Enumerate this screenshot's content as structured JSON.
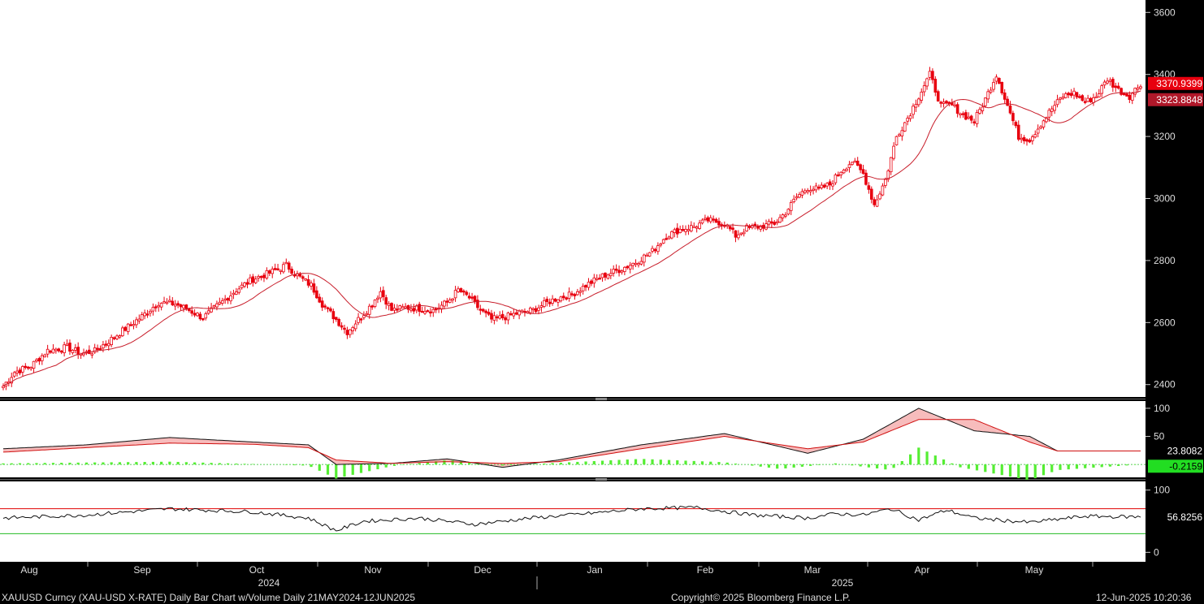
{
  "footer": {
    "left": "XAUUSD Curncy (XAU-USD X-RATE) Daily Bar Chart w/Volume  Daily 21MAY2024-12JUN2025",
    "center": "Copyright© 2025 Bloomberg Finance L.P.",
    "right": "12-Jun-2025 10:20:36"
  },
  "colors": {
    "background": "#ffffff",
    "candle": "#e8000f",
    "ma_line": "#c81e2b",
    "last_price_tag": "#e8000f",
    "ma_tag": "#b0182a",
    "hist_positive": "#55ee33",
    "hist_tag": "#22dd22",
    "stoch_fill": "#f4a0a0",
    "upper_band": "#e00000",
    "lower_band": "#22bb22",
    "axis_bg": "#000000"
  },
  "chart_data": [
    {
      "type": "candlestick",
      "x_months": [
        "Aug",
        "Sep",
        "Oct",
        "Nov",
        "Dec",
        "Jan",
        "Feb",
        "Mar",
        "Apr",
        "May"
      ],
      "years": [
        "2024",
        "2025"
      ],
      "y_ticks": [
        2400,
        2600,
        2800,
        3000,
        3200,
        3400,
        3600
      ],
      "ylim": [
        2360,
        3640
      ],
      "close_anchors": [
        [
          0,
          2395
        ],
        [
          4,
          2440
        ],
        [
          10,
          2460
        ],
        [
          16,
          2510
        ],
        [
          23,
          2520
        ],
        [
          28,
          2500
        ],
        [
          33,
          2508
        ],
        [
          38,
          2540
        ],
        [
          44,
          2580
        ],
        [
          50,
          2620
        ],
        [
          56,
          2665
        ],
        [
          62,
          2660
        ],
        [
          67,
          2640
        ],
        [
          72,
          2615
        ],
        [
          78,
          2660
        ],
        [
          84,
          2705
        ],
        [
          90,
          2740
        ],
        [
          96,
          2760
        ],
        [
          102,
          2785
        ],
        [
          107,
          2745
        ],
        [
          111,
          2720
        ],
        [
          115,
          2660
        ],
        [
          120,
          2610
        ],
        [
          124,
          2570
        ],
        [
          128,
          2610
        ],
        [
          132,
          2650
        ],
        [
          136,
          2700
        ],
        [
          140,
          2640
        ],
        [
          145,
          2648
        ],
        [
          150,
          2645
        ],
        [
          155,
          2640
        ],
        [
          160,
          2665
        ],
        [
          164,
          2705
        ],
        [
          168,
          2680
        ],
        [
          172,
          2640
        ],
        [
          176,
          2610
        ],
        [
          181,
          2618
        ],
        [
          186,
          2632
        ],
        [
          191,
          2640
        ],
        [
          195,
          2660
        ],
        [
          200,
          2680
        ],
        [
          205,
          2690
        ],
        [
          210,
          2720
        ],
        [
          216,
          2750
        ],
        [
          222,
          2770
        ],
        [
          228,
          2795
        ],
        [
          234,
          2830
        ],
        [
          239,
          2880
        ],
        [
          244,
          2900
        ],
        [
          249,
          2910
        ],
        [
          254,
          2930
        ],
        [
          260,
          2920
        ],
        [
          264,
          2880
        ],
        [
          268,
          2905
        ],
        [
          273,
          2910
        ],
        [
          278,
          2920
        ],
        [
          282,
          2955
        ],
        [
          286,
          3005
        ],
        [
          290,
          3035
        ],
        [
          294,
          3030
        ],
        [
          298,
          3045
        ],
        [
          302,
          3090
        ],
        [
          306,
          3120
        ],
        [
          310,
          3080
        ],
        [
          314,
          2980
        ],
        [
          318,
          3060
        ],
        [
          322,
          3200
        ],
        [
          326,
          3260
        ],
        [
          330,
          3330
        ],
        [
          334,
          3400
        ],
        [
          338,
          3300
        ],
        [
          342,
          3300
        ],
        [
          346,
          3270
        ],
        [
          350,
          3250
        ],
        [
          354,
          3320
        ],
        [
          358,
          3400
        ],
        [
          362,
          3300
        ],
        [
          366,
          3200
        ],
        [
          370,
          3190
        ],
        [
          374,
          3240
        ],
        [
          378,
          3290
        ],
        [
          382,
          3330
        ],
        [
          386,
          3340
        ],
        [
          390,
          3310
        ],
        [
          394,
          3330
        ],
        [
          398,
          3385
        ],
        [
          402,
          3350
        ],
        [
          406,
          3330
        ],
        [
          410,
          3371
        ]
      ],
      "last_price": "3370.9399",
      "moving_average": {
        "period": 20,
        "last": "3323.8848"
      }
    },
    {
      "type": "line",
      "y_ticks": [
        50,
        100
      ],
      "ylim": [
        -20,
        110
      ],
      "series": [
        {
          "values_anchors": [
            [
              0,
              28
            ],
            [
              30,
              35
            ],
            [
              60,
              48
            ],
            [
              90,
              40
            ],
            [
              110,
              35
            ],
            [
              120,
              0
            ],
            [
              140,
              2
            ],
            [
              160,
              10
            ],
            [
              180,
              -5
            ],
            [
              200,
              8
            ],
            [
              230,
              35
            ],
            [
              260,
              55
            ],
            [
              290,
              20
            ],
            [
              310,
              45
            ],
            [
              330,
              100
            ],
            [
              350,
              60
            ],
            [
              370,
              50
            ],
            [
              380,
              24
            ],
            [
              410,
              24
            ]
          ]
        },
        {
          "values_anchors": [
            [
              0,
              22
            ],
            [
              30,
              30
            ],
            [
              60,
              38
            ],
            [
              90,
              36
            ],
            [
              110,
              30
            ],
            [
              120,
              8
            ],
            [
              140,
              2
            ],
            [
              160,
              5
            ],
            [
              180,
              2
            ],
            [
              200,
              5
            ],
            [
              230,
              28
            ],
            [
              260,
              50
            ],
            [
              290,
              28
            ],
            [
              310,
              40
            ],
            [
              330,
              80
            ],
            [
              350,
              80
            ],
            [
              370,
              40
            ],
            [
              380,
              24
            ],
            [
              410,
              24
            ]
          ]
        }
      ],
      "histogram_anchors": [
        [
          0,
          2
        ],
        [
          60,
          5
        ],
        [
          110,
          -2
        ],
        [
          120,
          -25
        ],
        [
          140,
          -3
        ],
        [
          160,
          8
        ],
        [
          180,
          -2
        ],
        [
          200,
          3
        ],
        [
          230,
          10
        ],
        [
          260,
          4
        ],
        [
          280,
          -8
        ],
        [
          300,
          2
        ],
        [
          320,
          -10
        ],
        [
          330,
          30
        ],
        [
          345,
          -5
        ],
        [
          370,
          -28
        ],
        [
          380,
          -10
        ],
        [
          410,
          0
        ]
      ],
      "last_values": [
        "23.8082",
        "-0.2159"
      ]
    },
    {
      "type": "line",
      "y_ticks": [
        0,
        100
      ],
      "ylim": [
        -10,
        110
      ],
      "bands": [
        70,
        30
      ],
      "values_anchors": [
        [
          0,
          55
        ],
        [
          30,
          60
        ],
        [
          60,
          70
        ],
        [
          90,
          65
        ],
        [
          110,
          55
        ],
        [
          120,
          35
        ],
        [
          130,
          50
        ],
        [
          150,
          55
        ],
        [
          170,
          45
        ],
        [
          190,
          55
        ],
        [
          210,
          62
        ],
        [
          230,
          70
        ],
        [
          250,
          72
        ],
        [
          270,
          60
        ],
        [
          290,
          55
        ],
        [
          300,
          62
        ],
        [
          310,
          60
        ],
        [
          320,
          70
        ],
        [
          330,
          52
        ],
        [
          340,
          68
        ],
        [
          350,
          55
        ],
        [
          370,
          48
        ],
        [
          390,
          58
        ],
        [
          410,
          56.8
        ]
      ],
      "last_value": "56.8256"
    }
  ]
}
